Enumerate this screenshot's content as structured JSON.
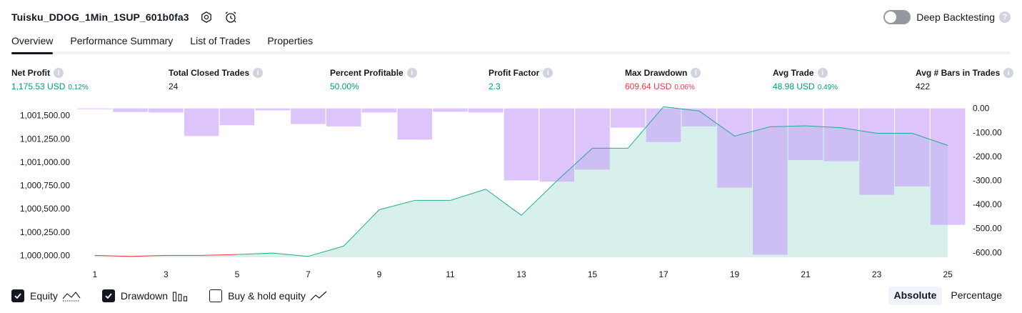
{
  "header": {
    "title": "Tuisku_DDOG_1Min_1SUP_601b0fa3",
    "deep_backtesting_label": "Deep Backtesting",
    "deep_backtesting_on": false
  },
  "tabs": [
    {
      "label": "Overview",
      "active": true
    },
    {
      "label": "Performance Summary",
      "active": false
    },
    {
      "label": "List of Trades",
      "active": false
    },
    {
      "label": "Properties",
      "active": false
    }
  ],
  "metrics": [
    {
      "label": "Net Profit",
      "value": "1,175.53 USD",
      "sub": "0.12%",
      "color": "green"
    },
    {
      "label": "Total Closed Trades",
      "value": "24",
      "sub": "",
      "color": "dark"
    },
    {
      "label": "Percent Profitable",
      "value": "50.00%",
      "sub": "",
      "color": "green"
    },
    {
      "label": "Profit Factor",
      "value": "2.3",
      "sub": "",
      "color": "green"
    },
    {
      "label": "Max Drawdown",
      "value": "609.64 USD",
      "sub": "0.06%",
      "color": "red"
    },
    {
      "label": "Avg Trade",
      "value": "48.98 USD",
      "sub": "0.49%",
      "color": "green"
    },
    {
      "label": "Avg # Bars in Trades",
      "value": "422",
      "sub": "",
      "color": "dark"
    }
  ],
  "colors": {
    "equity_line": "#22ab94",
    "equity_fill": "#22ab94",
    "equity_negative_line": "#f23645",
    "drawdown_bar": "#c69cf9"
  },
  "chart_data": {
    "type": "area",
    "x_ticks": [
      "1",
      "3",
      "5",
      "7",
      "9",
      "11",
      "13",
      "15",
      "17",
      "19",
      "21",
      "23",
      "25"
    ],
    "left_axis": {
      "ticks": [
        "1,001,500.00",
        "1,001,250.00",
        "1,001,000.00",
        "1,000,750.00",
        "1,000,500.00",
        "1,000,250.00",
        "1,000,000.00"
      ],
      "ylim": [
        999980,
        1001590
      ]
    },
    "right_axis": {
      "ticks": [
        "0.00",
        "-100.00",
        "-200.00",
        "-300.00",
        "-400.00",
        "-500.00",
        "-600.00"
      ],
      "ylim": [
        -620,
        5
      ]
    },
    "series": [
      {
        "name": "Equity",
        "x": [
          1,
          2,
          3,
          4,
          5,
          6,
          7,
          8,
          9,
          10,
          11,
          12,
          13,
          14,
          15,
          16,
          17,
          18,
          19,
          20,
          21,
          22,
          23,
          24,
          25
        ],
        "values": [
          1000000,
          999990,
          1000000,
          1000000,
          1000010,
          1000025,
          999990,
          1000100,
          1000490,
          1000590,
          1000590,
          1000710,
          1000430,
          1000800,
          1001150,
          1001150,
          1001595,
          1001550,
          1001280,
          1001380,
          1001390,
          1001370,
          1001310,
          1001310,
          1001180
        ]
      },
      {
        "name": "Drawdown",
        "x": [
          1,
          2,
          3,
          4,
          5,
          6,
          7,
          8,
          9,
          10,
          11,
          12,
          13,
          14,
          15,
          16,
          17,
          18,
          19,
          20,
          21,
          22,
          23,
          24,
          25
        ],
        "values": [
          -3,
          -15,
          -17,
          -115,
          -70,
          -8,
          -65,
          -75,
          -17,
          -130,
          -14,
          -17,
          -300,
          -305,
          -255,
          -80,
          -140,
          -75,
          -330,
          -609.64,
          -215,
          -220,
          -360,
          -325,
          -485
        ]
      }
    ]
  },
  "legend": [
    {
      "label": "Equity",
      "checked": true
    },
    {
      "label": "Drawdown",
      "checked": true
    },
    {
      "label": "Buy & hold equity",
      "checked": false
    }
  ],
  "mode": {
    "absolute": "Absolute",
    "percentage": "Percentage",
    "selected": "absolute"
  }
}
